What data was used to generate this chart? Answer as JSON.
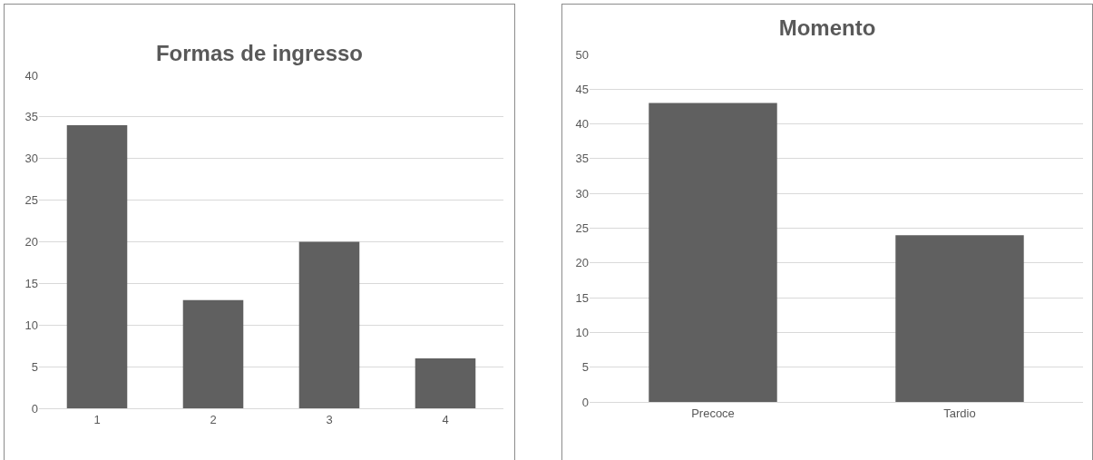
{
  "chart_data": [
    {
      "type": "bar",
      "title": "Formas de ingresso",
      "categories": [
        "1",
        "2",
        "3",
        "4"
      ],
      "values": [
        34,
        13,
        20,
        6
      ],
      "color": "#606060",
      "ylim": [
        0,
        40
      ],
      "yticks": [
        0,
        5,
        10,
        15,
        20,
        25,
        30,
        35,
        40
      ],
      "grid": "y",
      "legend": false
    },
    {
      "type": "bar",
      "title": "Momento",
      "categories": [
        "Precoce",
        "Tardio"
      ],
      "values": [
        43,
        24
      ],
      "color": "#606060",
      "ylim": [
        0,
        50
      ],
      "yticks": [
        0,
        5,
        10,
        15,
        20,
        25,
        30,
        35,
        40,
        45,
        50
      ],
      "grid": "y",
      "legend": false
    }
  ]
}
